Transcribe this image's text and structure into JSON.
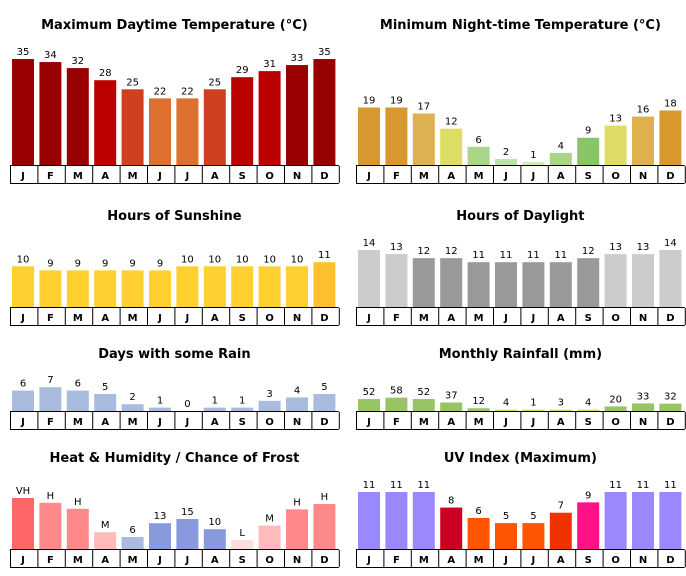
{
  "months": [
    "J",
    "F",
    "M",
    "A",
    "M",
    "J",
    "J",
    "A",
    "S",
    "O",
    "N",
    "D"
  ],
  "chart_data": [
    {
      "type": "bar",
      "title": "Maximum Daytime Temperature (°C)",
      "categories": [
        "J",
        "F",
        "M",
        "A",
        "M",
        "J",
        "J",
        "A",
        "S",
        "O",
        "N",
        "D"
      ],
      "values": [
        35,
        34,
        32,
        28,
        25,
        22,
        22,
        25,
        29,
        31,
        33,
        35
      ],
      "labels": [
        "35",
        "34",
        "32",
        "28",
        "25",
        "22",
        "22",
        "25",
        "29",
        "31",
        "33",
        "35"
      ],
      "colors": [
        "#990000",
        "#990000",
        "#990000",
        "#bb0000",
        "#d04020",
        "#dd7030",
        "#dd7030",
        "#d04020",
        "#bb0000",
        "#bb0000",
        "#990000",
        "#990000"
      ],
      "ylim": [
        0,
        35
      ]
    },
    {
      "type": "bar",
      "title": "Minimum Night-time Temperature (°C)",
      "categories": [
        "J",
        "F",
        "M",
        "A",
        "M",
        "J",
        "J",
        "A",
        "S",
        "O",
        "N",
        "D"
      ],
      "values": [
        19,
        19,
        17,
        12,
        6,
        2,
        1,
        4,
        9,
        13,
        16,
        18
      ],
      "labels": [
        "19",
        "19",
        "17",
        "12",
        "6",
        "2",
        "1",
        "4",
        "9",
        "13",
        "16",
        "18"
      ],
      "colors": [
        "#d89830",
        "#d89830",
        "#ddb050",
        "#dddd66",
        "#aad488",
        "#bbe4aa",
        "#ccf0bb",
        "#aad488",
        "#88c468",
        "#dddd66",
        "#ddb050",
        "#d89830"
      ],
      "ylim": [
        0,
        35
      ]
    },
    {
      "type": "bar",
      "title": "Hours of Sunshine",
      "categories": [
        "J",
        "F",
        "M",
        "A",
        "M",
        "J",
        "J",
        "A",
        "S",
        "O",
        "N",
        "D"
      ],
      "values": [
        10,
        9,
        9,
        9,
        9,
        9,
        10,
        10,
        10,
        10,
        10,
        11
      ],
      "labels": [
        "10",
        "9",
        "9",
        "9",
        "9",
        "9",
        "10",
        "10",
        "10",
        "10",
        "10",
        "11"
      ],
      "colors": [
        "#ffd030",
        "#ffd030",
        "#ffd030",
        "#ffd030",
        "#ffd030",
        "#ffd030",
        "#ffd030",
        "#ffd030",
        "#ffd030",
        "#ffd030",
        "#ffd030",
        "#ffc030"
      ],
      "ylim": [
        0,
        14
      ]
    },
    {
      "type": "bar",
      "title": "Hours of Daylight",
      "categories": [
        "J",
        "F",
        "M",
        "A",
        "M",
        "J",
        "J",
        "A",
        "S",
        "O",
        "N",
        "D"
      ],
      "values": [
        14,
        13,
        12,
        12,
        11,
        11,
        11,
        11,
        12,
        13,
        13,
        14
      ],
      "labels": [
        "14",
        "13",
        "12",
        "12",
        "11",
        "11",
        "11",
        "11",
        "12",
        "13",
        "13",
        "14"
      ],
      "colors": [
        "#cccccc",
        "#cccccc",
        "#999999",
        "#999999",
        "#999999",
        "#999999",
        "#999999",
        "#999999",
        "#999999",
        "#cccccc",
        "#cccccc",
        "#cccccc"
      ],
      "ylim": [
        0,
        14
      ]
    },
    {
      "type": "bar",
      "title": "Days with some Rain",
      "categories": [
        "J",
        "F",
        "M",
        "A",
        "M",
        "J",
        "J",
        "A",
        "S",
        "O",
        "N",
        "D"
      ],
      "values": [
        6,
        7,
        6,
        5,
        2,
        1,
        0,
        1,
        1,
        3,
        4,
        5
      ],
      "labels": [
        "6",
        "7",
        "6",
        "5",
        "2",
        "1",
        "0",
        "1",
        "1",
        "3",
        "4",
        "5"
      ],
      "colors": [
        "#aabbe0",
        "#aabbe0",
        "#aabbe0",
        "#aabbe0",
        "#aabbe0",
        "#aabbe0",
        "#aabbe0",
        "#aabbe0",
        "#aabbe0",
        "#aabbe0",
        "#aabbe0",
        "#aabbe0"
      ],
      "ylim": [
        0,
        25
      ]
    },
    {
      "type": "bar",
      "title": "Monthly Rainfall (mm)",
      "categories": [
        "J",
        "F",
        "M",
        "A",
        "M",
        "J",
        "J",
        "A",
        "S",
        "O",
        "N",
        "D"
      ],
      "values": [
        52,
        58,
        52,
        37,
        12,
        4,
        1,
        3,
        4,
        20,
        33,
        32
      ],
      "labels": [
        "52",
        "58",
        "52",
        "37",
        "12",
        "4",
        "1",
        "3",
        "4",
        "20",
        "33",
        "32"
      ],
      "colors": [
        "#99c466",
        "#99c466",
        "#99c466",
        "#99c466",
        "#99c466",
        "#dddd66",
        "#dddd66",
        "#dddd66",
        "#dddd66",
        "#99c466",
        "#99c466",
        "#99c466"
      ],
      "ylim": [
        0,
        200
      ]
    },
    {
      "type": "bar",
      "title": "Heat & Humidity / Chance of Frost",
      "categories": [
        "J",
        "F",
        "M",
        "A",
        "M",
        "J",
        "J",
        "A",
        "S",
        "O",
        "N",
        "D"
      ],
      "values": [
        85,
        77,
        67,
        28,
        20,
        43,
        50,
        33,
        15,
        39,
        66,
        75
      ],
      "labels": [
        "VH",
        "H",
        "H",
        "M",
        "6",
        "13",
        "15",
        "10",
        "L",
        "M",
        "H",
        "H"
      ],
      "colors": [
        "#ff6666",
        "#ff8888",
        "#ff8888",
        "#ffbbbb",
        "#aabbe0",
        "#8899dd",
        "#8899dd",
        "#8899dd",
        "#ffdddd",
        "#ffbbbb",
        "#ff8888",
        "#ff8888"
      ],
      "ylim": [
        0,
        100
      ]
    },
    {
      "type": "bar",
      "title": "UV Index (Maximum)",
      "categories": [
        "J",
        "F",
        "M",
        "A",
        "M",
        "J",
        "J",
        "A",
        "S",
        "O",
        "N",
        "D"
      ],
      "values": [
        11,
        11,
        11,
        8,
        6,
        5,
        5,
        7,
        9,
        11,
        11,
        11
      ],
      "labels": [
        "11",
        "11",
        "11",
        "8",
        "6",
        "5",
        "5",
        "7",
        "9",
        "11",
        "11",
        "11"
      ],
      "colors": [
        "#9988ff",
        "#9988ff",
        "#9988ff",
        "#cc0022",
        "#ff5500",
        "#ff5500",
        "#ff5500",
        "#ee3300",
        "#ff1188",
        "#9988ff",
        "#9988ff",
        "#9988ff"
      ],
      "ylim": [
        0,
        11
      ]
    }
  ]
}
